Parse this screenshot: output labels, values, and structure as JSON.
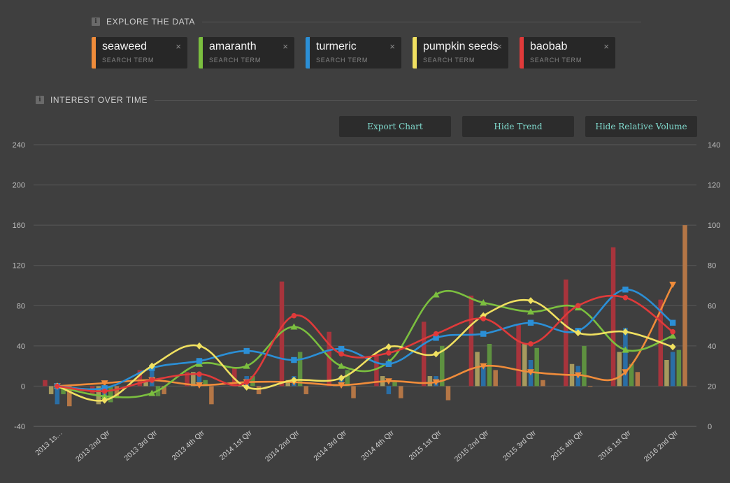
{
  "explore": {
    "title": "EXPLORE THE DATA",
    "info_icon": "i"
  },
  "interest": {
    "title": "INTEREST OVER TIME",
    "info_icon": "i"
  },
  "terms": [
    {
      "name": "seaweed",
      "subtitle": "SEARCH TERM",
      "color": "#f08c3a"
    },
    {
      "name": "amaranth",
      "subtitle": "SEARCH TERM",
      "color": "#7bbf3f"
    },
    {
      "name": "turmeric",
      "subtitle": "SEARCH TERM",
      "color": "#2b8fd6"
    },
    {
      "name": "pumpkin seeds",
      "subtitle": "SEARCH TERM",
      "color": "#f0e060"
    },
    {
      "name": "baobab",
      "subtitle": "SEARCH TERM",
      "color": "#e03a3a"
    }
  ],
  "close_glyph": "×",
  "buttons": {
    "export": "Export Chart",
    "hide_trend": "Hide Trend",
    "hide_volume": "Hide Relative Volume"
  },
  "chart_data": {
    "type": "bar",
    "categories": [
      "2013 1s…",
      "2013 2nd Qtr",
      "2013 3rd Qtr",
      "2013 4th Qtr",
      "2014 1st Qtr",
      "2014 2nd Qtr",
      "2014 3rd Qtr",
      "2014 4th Qtr",
      "2015 1st Qtr",
      "2015 2nd Qtr",
      "2015 3rd Qtr",
      "2015 4th Qtr",
      "2016 1st Qtr",
      "2016 2nd Qtr"
    ],
    "left_axis": {
      "ylim": [
        -40,
        240
      ],
      "ticks": [
        -40,
        0,
        40,
        80,
        120,
        160,
        200,
        240
      ]
    },
    "right_axis": {
      "ylim": [
        0,
        140
      ],
      "ticks": [
        0,
        20,
        40,
        60,
        80,
        100,
        120,
        140
      ]
    },
    "grid": true,
    "bar_order": [
      "baobab",
      "pumpkin seeds",
      "turmeric",
      "amaranth",
      "seaweed"
    ],
    "bar_colors": {
      "baobab": "#a8343c",
      "pumpkin seeds": "#a79a5e",
      "turmeric": "#2a6ea5",
      "amaranth": "#5e9140",
      "seaweed": "#b47646"
    },
    "bars": {
      "baobab": [
        6,
        -8,
        16,
        14,
        18,
        104,
        54,
        32,
        64,
        90,
        62,
        106,
        138,
        86
      ],
      "pumpkin seeds": [
        -8,
        -18,
        4,
        14,
        0,
        6,
        2,
        10,
        10,
        34,
        42,
        22,
        34,
        26
      ],
      "turmeric": [
        -18,
        -12,
        18,
        14,
        10,
        10,
        10,
        -8,
        10,
        22,
        26,
        20,
        58,
        34
      ],
      "amaranth": [
        -8,
        -16,
        -10,
        6,
        10,
        34,
        16,
        4,
        40,
        42,
        38,
        40,
        22,
        36
      ],
      "seaweed": [
        -20,
        -12,
        -8,
        -18,
        -8,
        -8,
        -12,
        -12,
        -14,
        16,
        6,
        0,
        14,
        160
      ]
    },
    "lines": {
      "seaweed": [
        20,
        21.5,
        23,
        20.5,
        22,
        22,
        20.5,
        22.5,
        22,
        30,
        27,
        25.5,
        27,
        70.5
      ],
      "amaranth": [
        20,
        15,
        16.5,
        31,
        30,
        49.5,
        30,
        32,
        65.5,
        61.5,
        57,
        59,
        38,
        45
      ],
      "turmeric": [
        20,
        19,
        29,
        32.5,
        37.5,
        33,
        38.5,
        31,
        44,
        46,
        51.5,
        47.5,
        68,
        51.5
      ],
      "pumpkin seeds": [
        20,
        13,
        30,
        40,
        19.5,
        23,
        24,
        39.5,
        36,
        55,
        62.5,
        46.5,
        47,
        39.5
      ],
      "baobab": [
        20,
        17.5,
        23,
        26,
        22,
        55,
        36,
        36.5,
        46,
        53.5,
        41,
        60,
        64,
        47
      ]
    },
    "line_order": [
      "seaweed",
      "amaranth",
      "turmeric",
      "pumpkin seeds",
      "baobab"
    ],
    "markers": {
      "seaweed": "triangle-down",
      "amaranth": "triangle-up",
      "turmeric": "square",
      "pumpkin seeds": "diamond",
      "baobab": "circle"
    }
  }
}
